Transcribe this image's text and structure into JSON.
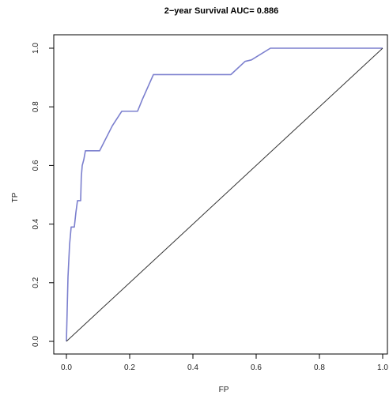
{
  "chart_data": {
    "type": "line",
    "title": "2−year Survival AUC= 0.886",
    "xlabel": "FP",
    "ylabel": "TP",
    "xlim": [
      0,
      1
    ],
    "ylim": [
      0,
      1
    ],
    "x_ticks": [
      "0.0",
      "0.2",
      "0.4",
      "0.6",
      "0.8",
      "1.0"
    ],
    "y_ticks": [
      "0.0",
      "0.2",
      "0.4",
      "0.6",
      "0.8",
      "1.0"
    ],
    "grid": false,
    "series": [
      {
        "color": "#7b7fce",
        "points": [
          [
            0.0,
            0.0
          ],
          [
            0.005,
            0.22
          ],
          [
            0.01,
            0.33
          ],
          [
            0.015,
            0.39
          ],
          [
            0.025,
            0.39
          ],
          [
            0.03,
            0.44
          ],
          [
            0.035,
            0.48
          ],
          [
            0.045,
            0.48
          ],
          [
            0.047,
            0.56
          ],
          [
            0.05,
            0.6
          ],
          [
            0.055,
            0.62
          ],
          [
            0.06,
            0.65
          ],
          [
            0.105,
            0.65
          ],
          [
            0.145,
            0.735
          ],
          [
            0.175,
            0.785
          ],
          [
            0.225,
            0.785
          ],
          [
            0.24,
            0.825
          ],
          [
            0.275,
            0.91
          ],
          [
            0.52,
            0.91
          ],
          [
            0.565,
            0.955
          ],
          [
            0.585,
            0.96
          ],
          [
            0.645,
            1.0
          ],
          [
            1.0,
            1.0
          ]
        ]
      },
      {
        "color": "#333333",
        "points": [
          [
            0,
            0
          ],
          [
            1,
            1
          ]
        ]
      }
    ]
  }
}
